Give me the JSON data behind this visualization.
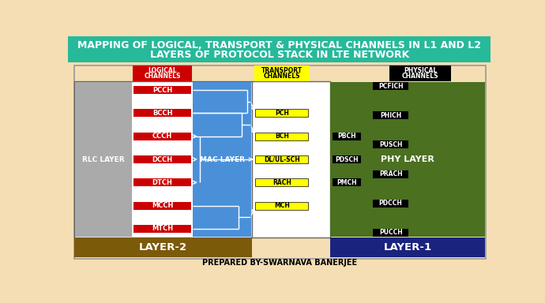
{
  "title_line1": "MAPPING OF LOGICAL, TRANSPORT & PHYSICAL CHANNELS IN L1 AND L2",
  "title_line2": "LAYERS OF PROTOCOL STACK IN LTE NETWORK",
  "title_bg": "#26B99A",
  "title_color": "white",
  "bg_color": "#F5DEB3",
  "rlc_color": "#AAAAAA",
  "mac_color": "#4A90D9",
  "phy_color": "#4A7020",
  "layer2_color": "#7B5A0A",
  "layer1_color": "#1A237E",
  "red_ch": "#CC0000",
  "yellow_ch": "#FFFF00",
  "black_ch": "#000000",
  "logical_channels": [
    "PCCH",
    "BCCH",
    "CCCH",
    "DCCH",
    "DTCH",
    "MCCH",
    "MTCH"
  ],
  "transport_channels": [
    "PCH",
    "BCH",
    "DL/UL-SCH",
    "RACH",
    "MCH"
  ],
  "phys_mid_channels": [
    "PBCH",
    "PDSCH",
    "PMCH"
  ],
  "phys_right_channels": [
    "PCFICH",
    "PHICH",
    "PUSCH",
    "PRACH",
    "PDCCH",
    "PUCCH"
  ],
  "footer": "PREPARED BY-SWARNAVA BANERJEE"
}
